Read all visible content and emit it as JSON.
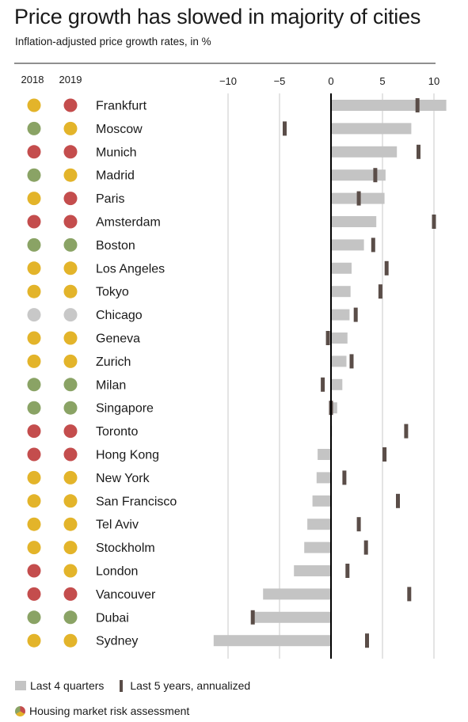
{
  "chart_data": {
    "type": "bar",
    "title": "Price growth has slowed in majority of cities",
    "subtitle": "Inflation-adjusted price growth rates, in %",
    "column_headers": [
      "2018",
      "2019"
    ],
    "x_ticks": [
      -10,
      -5,
      0,
      5,
      10
    ],
    "xlim": [
      -11.5,
      11.5
    ],
    "categories": [
      "Frankfurt",
      "Moscow",
      "Munich",
      "Madrid",
      "Paris",
      "Amsterdam",
      "Boston",
      "Los Angeles",
      "Tokyo",
      "Chicago",
      "Geneva",
      "Zurich",
      "Milan",
      "Singapore",
      "Toronto",
      "Hong Kong",
      "New York",
      "San Francisco",
      "Tel Aviv",
      "Stockholm",
      "London",
      "Vancouver",
      "Dubai",
      "Sydney"
    ],
    "risk_2018": [
      "yellow",
      "green",
      "red",
      "green",
      "yellow",
      "red",
      "green",
      "yellow",
      "yellow",
      "grey",
      "yellow",
      "yellow",
      "green",
      "green",
      "red",
      "red",
      "yellow",
      "yellow",
      "yellow",
      "yellow",
      "red",
      "red",
      "green",
      "yellow"
    ],
    "risk_2019": [
      "red",
      "yellow",
      "red",
      "yellow",
      "red",
      "red",
      "green",
      "yellow",
      "yellow",
      "grey",
      "yellow",
      "yellow",
      "green",
      "green",
      "red",
      "red",
      "yellow",
      "yellow",
      "yellow",
      "yellow",
      "yellow",
      "red",
      "green",
      "yellow"
    ],
    "series": [
      {
        "name": "Last 4 quarters",
        "values": [
          11.2,
          7.8,
          6.4,
          5.3,
          5.2,
          4.4,
          3.2,
          2.0,
          1.9,
          1.8,
          1.6,
          1.5,
          1.1,
          0.6,
          0.1,
          -1.3,
          -1.4,
          -1.8,
          -2.3,
          -2.6,
          -3.6,
          -6.6,
          -7.7,
          -11.4
        ]
      },
      {
        "name": "Last 5 years, annualized",
        "values": [
          8.4,
          -4.5,
          8.5,
          4.3,
          2.7,
          10.0,
          4.1,
          5.4,
          4.8,
          2.4,
          -0.3,
          2.0,
          -0.8,
          0.0,
          7.3,
          5.2,
          1.3,
          6.5,
          2.7,
          3.4,
          1.6,
          7.6,
          -7.6,
          3.5
        ]
      }
    ],
    "legend": {
      "bar_label": "Last 4 quarters",
      "tick_label": "Last 5 years, annualized",
      "risk_label": "Housing market risk assessment",
      "position": "bottom-left"
    },
    "colors": {
      "bar": "#c4c4c4",
      "tick": "#5a4d48",
      "axis": "#000000",
      "grid": "#c8c8c8",
      "red": "#c44d4d",
      "yellow": "#e3b42a",
      "green": "#8aa365",
      "grey": "#c8c8c8"
    }
  }
}
